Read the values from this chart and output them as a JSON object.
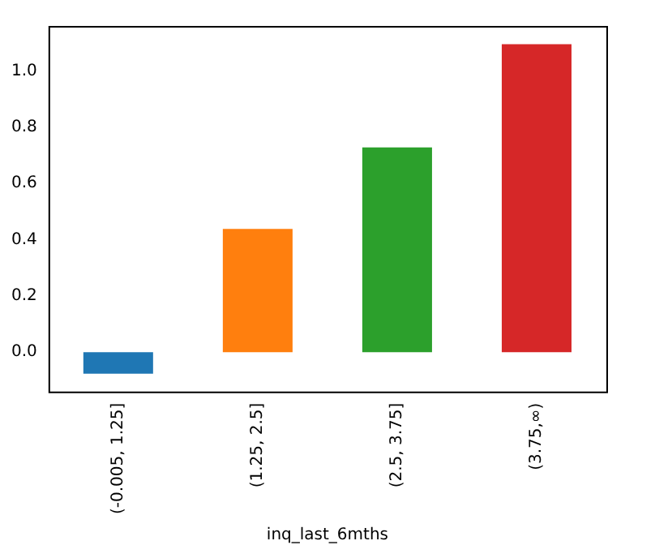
{
  "chart_data": {
    "type": "bar",
    "xlabel": "inq_last_6mths",
    "categories": [
      "(-0.005, 1.25]",
      "(1.25, 2.5]",
      "(2.5, 3.75]",
      "(3.75,∞)"
    ],
    "values": [
      -0.077,
      0.438,
      0.728,
      1.095
    ],
    "colors": [
      "#1f77b4",
      "#ff7f0e",
      "#2ca02c",
      "#d62728"
    ],
    "ylim": [
      -0.14,
      1.16
    ],
    "yticks": [
      {
        "value": 0,
        "label": "0.0"
      },
      {
        "value": 0.2,
        "label": "0.2"
      },
      {
        "value": 0.4,
        "label": "0.4"
      },
      {
        "value": 0.6,
        "label": "0.6"
      },
      {
        "value": 0.8,
        "label": "0.8"
      },
      {
        "value": 1,
        "label": "1.0"
      }
    ],
    "grid": false,
    "legend": false
  }
}
